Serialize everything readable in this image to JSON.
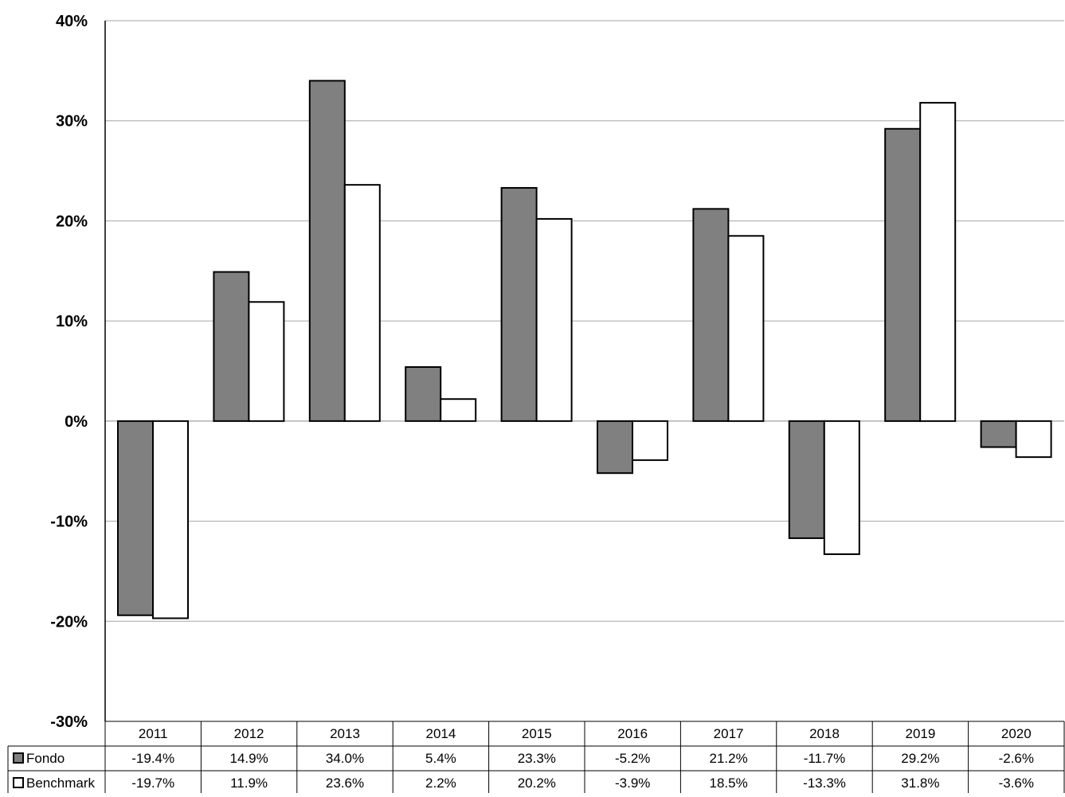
{
  "chart_data": {
    "type": "bar",
    "categories": [
      "2011",
      "2012",
      "2013",
      "2014",
      "2015",
      "2016",
      "2017",
      "2018",
      "2019",
      "2020"
    ],
    "series": [
      {
        "name": "Fondo",
        "values": [
          -19.4,
          14.9,
          34.0,
          5.4,
          23.3,
          -5.2,
          21.2,
          -11.7,
          29.2,
          -2.6
        ],
        "labels": [
          "-19.4%",
          "14.9%",
          "34.0%",
          "5.4%",
          "23.3%",
          "-5.2%",
          "21.2%",
          "-11.7%",
          "29.2%",
          "-2.6%"
        ],
        "color": "#808080"
      },
      {
        "name": "Benchmark",
        "values": [
          -19.7,
          11.9,
          23.6,
          2.2,
          20.2,
          -3.9,
          18.5,
          -13.3,
          31.8,
          -3.6
        ],
        "labels": [
          "-19.7%",
          "11.9%",
          "23.6%",
          "2.2%",
          "20.2%",
          "-3.9%",
          "18.5%",
          "-13.3%",
          "31.8%",
          "-3.6%"
        ],
        "color": "#ffffff"
      }
    ],
    "ylim": [
      -30,
      40
    ],
    "yticks": [
      -30,
      -20,
      -10,
      0,
      10,
      20,
      30,
      40
    ],
    "ytick_labels": [
      "-30%",
      "-20%",
      "-10%",
      "0%",
      "10%",
      "20%",
      "30%",
      "40%"
    ],
    "grid": true,
    "legend": "data-table-left",
    "data_table": true
  }
}
